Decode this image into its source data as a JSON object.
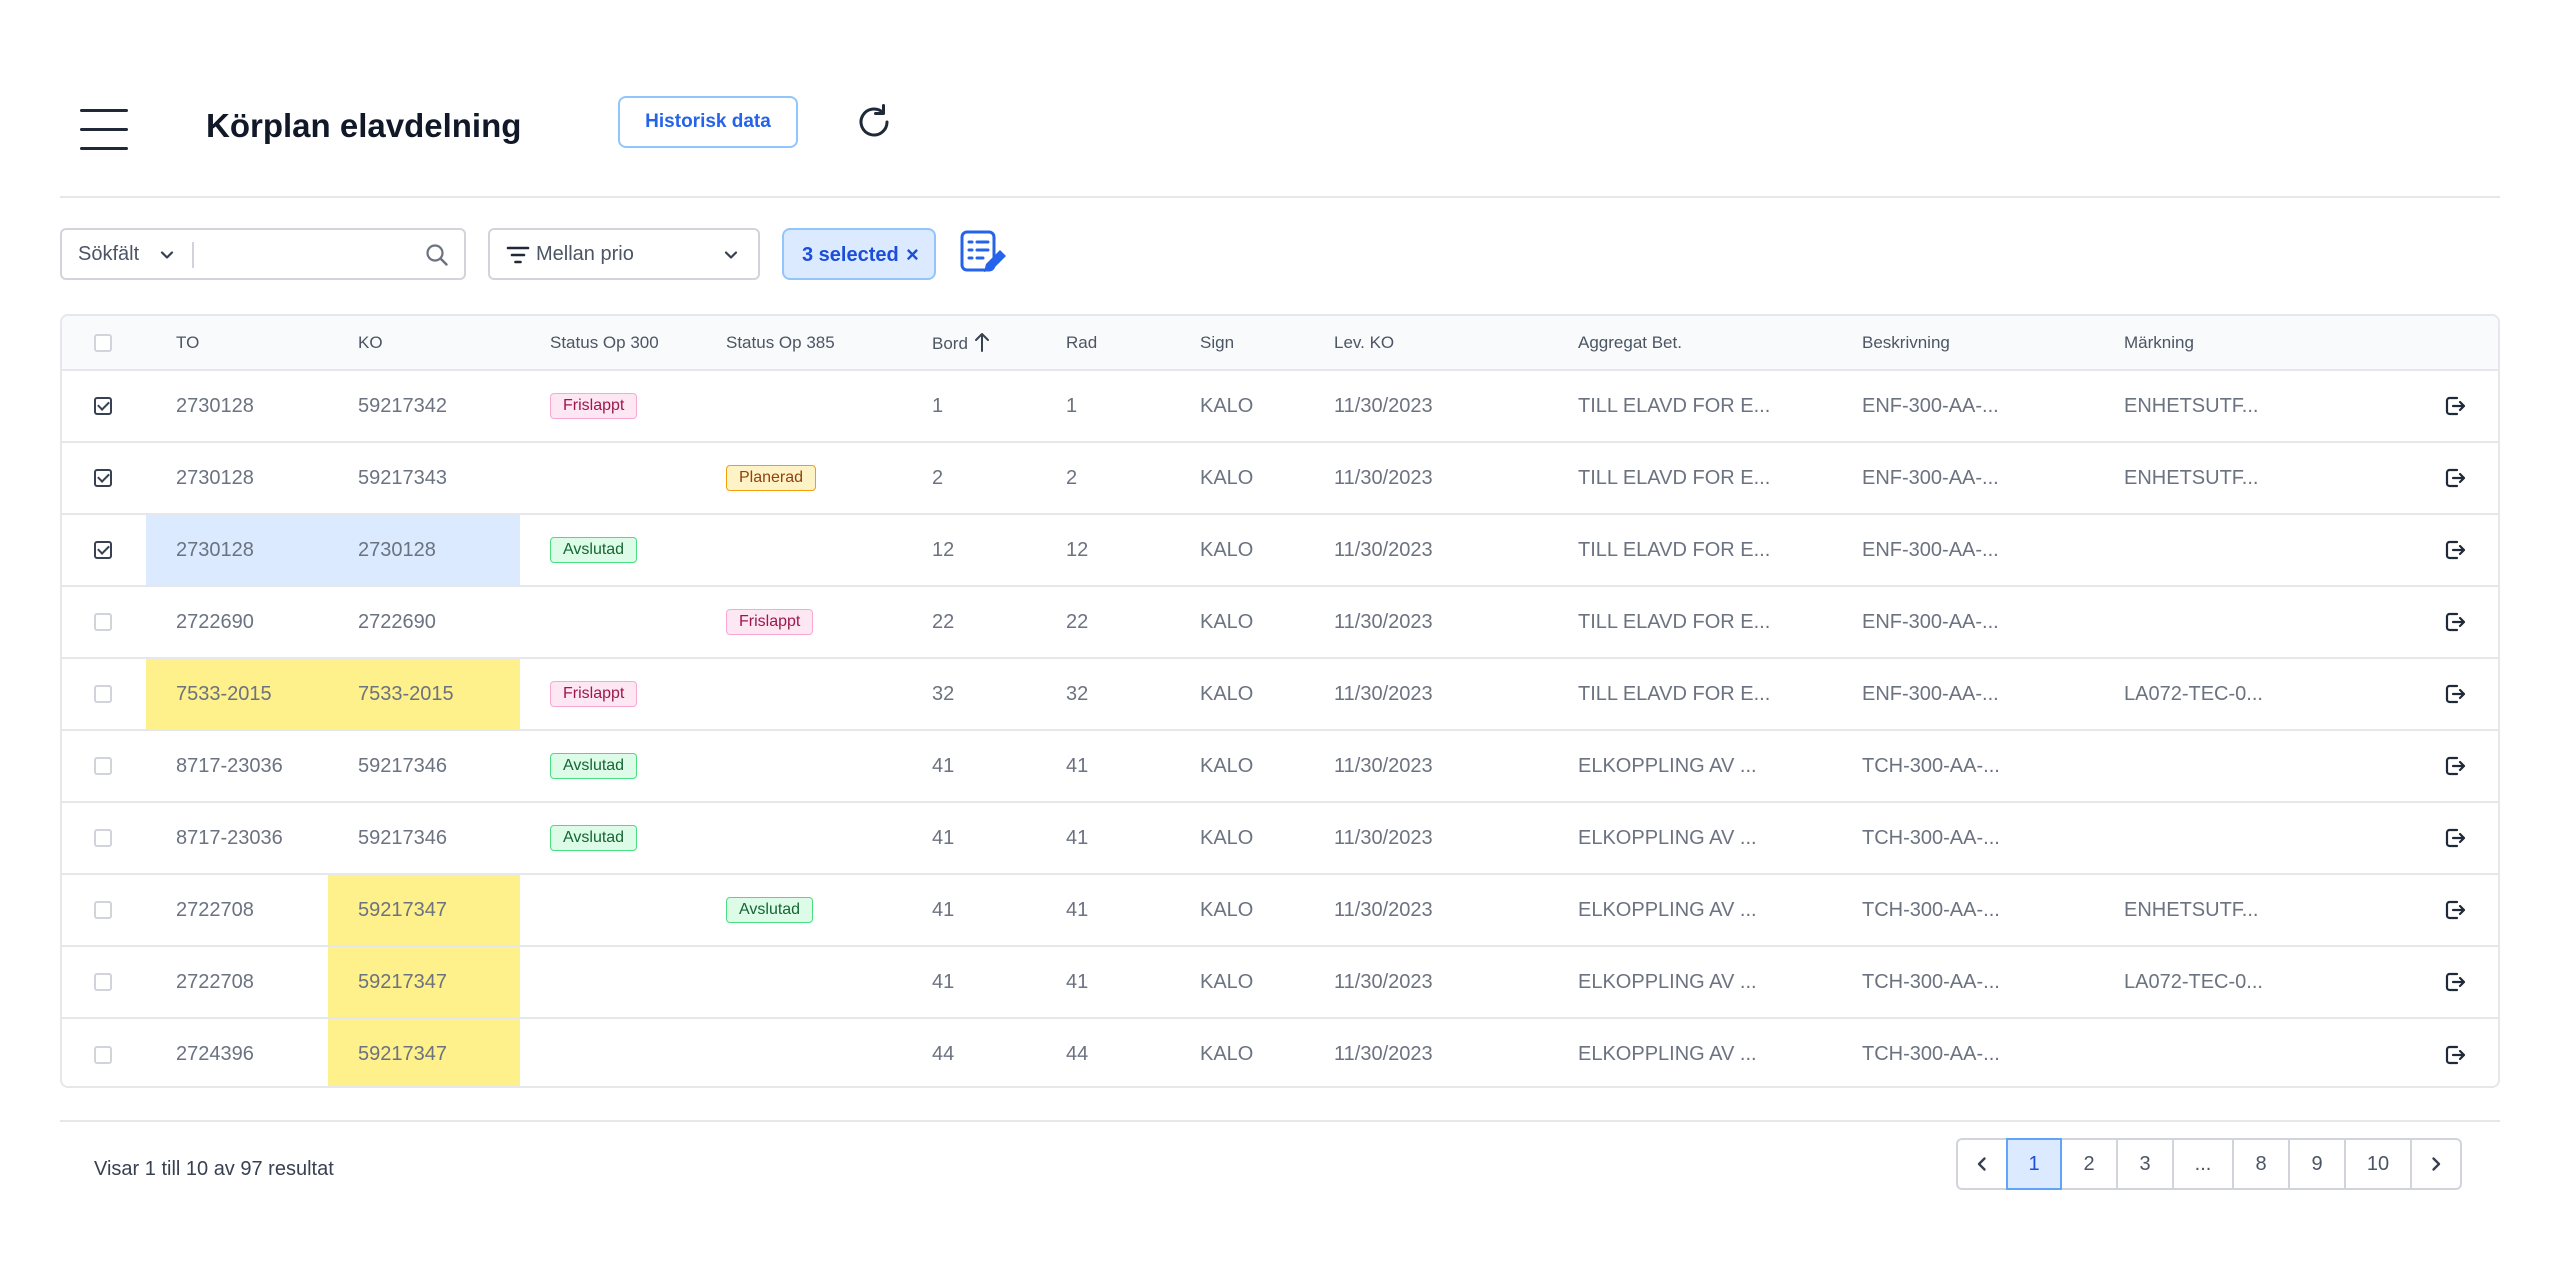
{
  "header": {
    "title": "Körplan elavdelning",
    "historisk_label": "Historisk data"
  },
  "toolbar": {
    "search_field_label": "Sökfält",
    "search_value": "",
    "prio_label": "Mellan prio",
    "selected_label": "3 selected",
    "selected_clear": "×"
  },
  "table": {
    "columns": {
      "to": "TO",
      "ko": "KO",
      "status300": "Status Op 300",
      "status385": "Status Op 385",
      "bord": "Bord",
      "rad": "Rad",
      "sign": "Sign",
      "levko": "Lev. KO",
      "aggregat": "Aggregat Bet.",
      "beskrivning": "Beskrivning",
      "markning": "Märkning"
    },
    "rows": [
      {
        "checked": true,
        "to": "2730128",
        "ko": "59217342",
        "status300": "Frislappt",
        "status385": "",
        "bord": "1",
        "rad": "1",
        "sign": "KALO",
        "levko": "11/30/2023",
        "aggregat": "TILL ELAVD FOR E...",
        "beskrivning": "ENF-300-AA-...",
        "markning": "ENHETSUTF..."
      },
      {
        "checked": true,
        "to": "2730128",
        "ko": "59217343",
        "status300": "",
        "status385": "Planerad",
        "bord": "2",
        "rad": "2",
        "sign": "KALO",
        "levko": "11/30/2023",
        "aggregat": "TILL ELAVD FOR E...",
        "beskrivning": "ENF-300-AA-...",
        "markning": "ENHETSUTF..."
      },
      {
        "checked": true,
        "to": "2730128",
        "ko": "2730128",
        "status300": "Avslutad",
        "status385": "",
        "bord": "12",
        "rad": "12",
        "sign": "KALO",
        "levko": "11/30/2023",
        "aggregat": "TILL ELAVD FOR E...",
        "beskrivning": "ENF-300-AA-...",
        "markning": ""
      },
      {
        "checked": false,
        "to": "2722690",
        "ko": "2722690",
        "status300": "",
        "status385": "Frislappt",
        "bord": "22",
        "rad": "22",
        "sign": "KALO",
        "levko": "11/30/2023",
        "aggregat": "TILL ELAVD FOR E...",
        "beskrivning": "ENF-300-AA-...",
        "markning": ""
      },
      {
        "checked": false,
        "to": "7533-2015",
        "ko": "7533-2015",
        "status300": "Frislappt",
        "status385": "",
        "bord": "32",
        "rad": "32",
        "sign": "KALO",
        "levko": "11/30/2023",
        "aggregat": "TILL ELAVD FOR E...",
        "beskrivning": "ENF-300-AA-...",
        "markning": "LA072-TEC-0..."
      },
      {
        "checked": false,
        "to": "8717-23036",
        "ko": "59217346",
        "status300": "Avslutad",
        "status385": "",
        "bord": "41",
        "rad": "41",
        "sign": "KALO",
        "levko": "11/30/2023",
        "aggregat": "ELKOPPLING AV ...",
        "beskrivning": "TCH-300-AA-...",
        "markning": ""
      },
      {
        "checked": false,
        "to": "8717-23036",
        "ko": "59217346",
        "status300": "Avslutad",
        "status385": "",
        "bord": "41",
        "rad": "41",
        "sign": "KALO",
        "levko": "11/30/2023",
        "aggregat": "ELKOPPLING AV ...",
        "beskrivning": "TCH-300-AA-...",
        "markning": ""
      },
      {
        "checked": false,
        "to": "2722708",
        "ko": "59217347",
        "status300": "",
        "status385": "Avslutad",
        "bord": "41",
        "rad": "41",
        "sign": "KALO",
        "levko": "11/30/2023",
        "aggregat": "ELKOPPLING AV ...",
        "beskrivning": "TCH-300-AA-...",
        "markning": "ENHETSUTF..."
      },
      {
        "checked": false,
        "to": "2722708",
        "ko": "59217347",
        "status300": "",
        "status385": "",
        "bord": "41",
        "rad": "41",
        "sign": "KALO",
        "levko": "11/30/2023",
        "aggregat": "ELKOPPLING AV ...",
        "beskrivning": "TCH-300-AA-...",
        "markning": "LA072-TEC-0..."
      },
      {
        "checked": false,
        "to": "2724396",
        "ko": "59217347",
        "status300": "",
        "status385": "",
        "bord": "44",
        "rad": "44",
        "sign": "KALO",
        "levko": "11/30/2023",
        "aggregat": "ELKOPPLING AV ...",
        "beskrivning": "TCH-300-AA-...",
        "markning": ""
      }
    ]
  },
  "footer": {
    "result_text": "Visar 1 till 10 av 97 resultat",
    "pages": [
      "1",
      "2",
      "3",
      "...",
      "8",
      "9",
      "10"
    ],
    "active_page": "1"
  },
  "colors": {
    "highlight_blue": "#dbeafe",
    "highlight_yellow": "#fef08a",
    "accent": "#2563eb"
  }
}
